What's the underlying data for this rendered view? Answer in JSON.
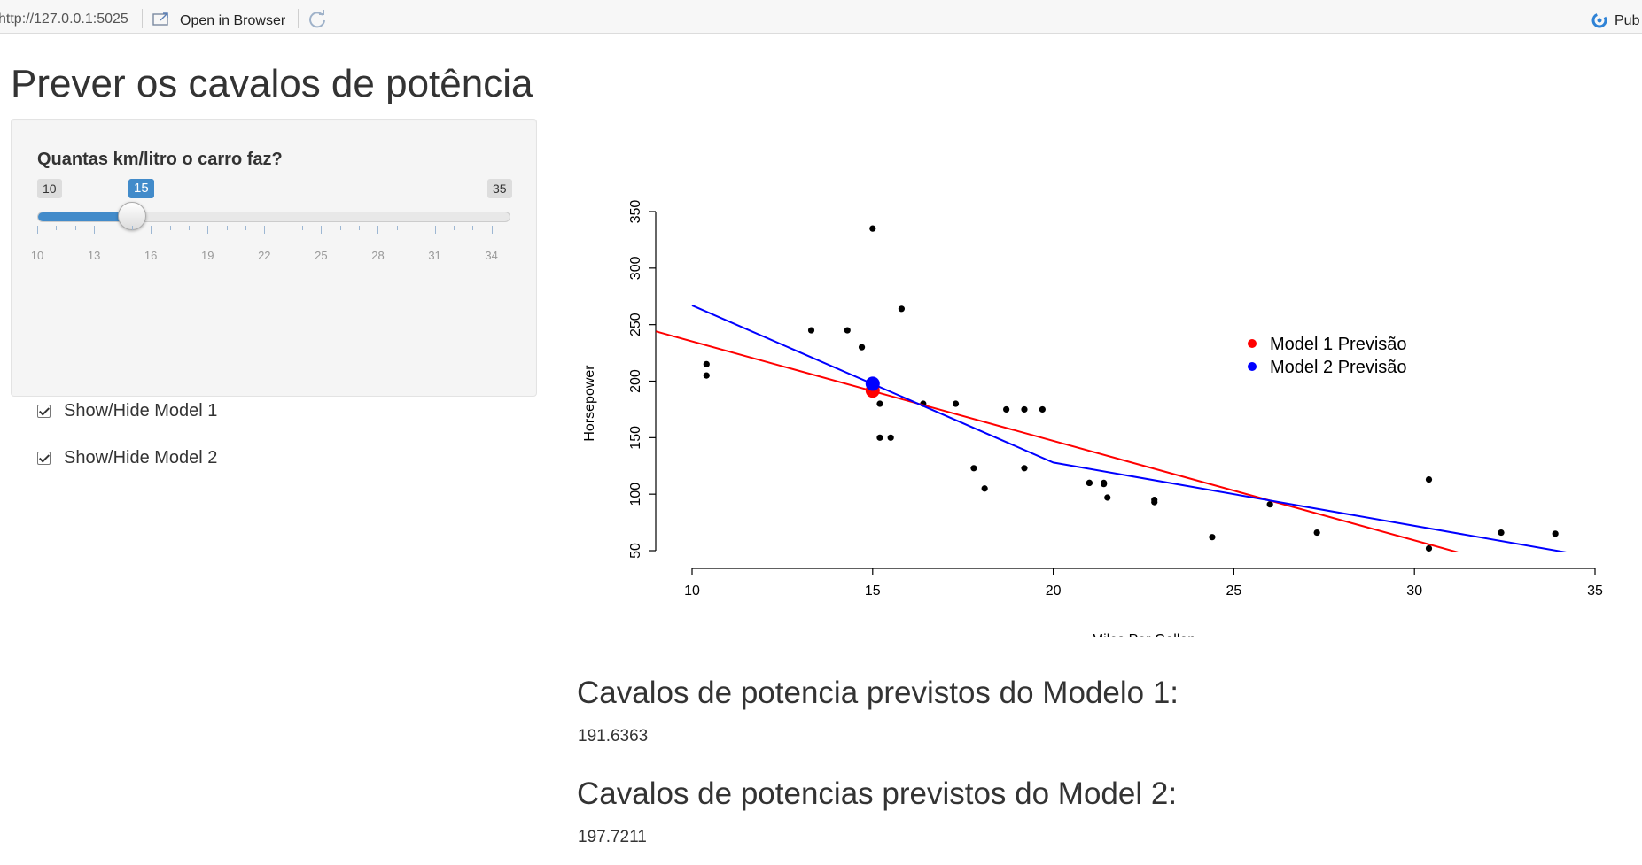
{
  "toolbar": {
    "url": "http://127.0.0.1:5025",
    "open_in_browser": "Open in Browser",
    "publish": "Pub"
  },
  "page": {
    "title": "Prever os cavalos de potência"
  },
  "sidebar": {
    "slider": {
      "label": "Quantas km/litro o carro faz?",
      "min": 10,
      "max": 35,
      "value": 15,
      "min_label": "10",
      "max_label": "35",
      "value_label": "15",
      "tick_labels": [
        "10",
        "13",
        "16",
        "19",
        "22",
        "25",
        "28",
        "31",
        "34"
      ]
    },
    "checkbox_model1": {
      "label": "Show/Hide Model 1",
      "checked": true
    },
    "checkbox_model2": {
      "label": "Show/Hide Model 2",
      "checked": true
    }
  },
  "chart_data": {
    "type": "scatter",
    "xlabel": "Miles Per Gallon",
    "ylabel": "Horsepower",
    "xlim": [
      10,
      35
    ],
    "ylim": [
      50,
      350
    ],
    "xticks": [
      10,
      15,
      20,
      25,
      30,
      35
    ],
    "yticks": [
      50,
      100,
      150,
      200,
      250,
      300,
      350
    ],
    "points": {
      "x": [
        21,
        21,
        22.8,
        21.4,
        18.7,
        18.1,
        14.3,
        24.4,
        22.8,
        19.2,
        17.8,
        16.4,
        17.3,
        15.2,
        10.4,
        10.4,
        14.7,
        32.4,
        30.4,
        33.9,
        21.5,
        15.5,
        15.2,
        13.3,
        19.2,
        27.3,
        26,
        30.4,
        15.8,
        19.7,
        15,
        21.4
      ],
      "y": [
        110,
        110,
        93,
        110,
        175,
        105,
        245,
        62,
        95,
        123,
        123,
        180,
        180,
        180,
        205,
        215,
        230,
        66,
        52,
        65,
        97,
        150,
        150,
        245,
        175,
        66,
        91,
        113,
        264,
        175,
        335,
        109
      ]
    },
    "model1_line": {
      "color": "#ff0000",
      "x": [
        9,
        32.4
      ],
      "y": [
        244,
        38
      ]
    },
    "model2_line": {
      "color": "#0000ff",
      "x": [
        10,
        20,
        35
      ],
      "y": [
        267,
        128,
        44
      ]
    },
    "model1_prediction": {
      "x": 15,
      "y": 191.6363,
      "color": "#ff0000"
    },
    "model2_prediction": {
      "x": 15,
      "y": 197.7211,
      "color": "#0000ff"
    },
    "legend": {
      "position": "top-right",
      "entries": [
        {
          "label": "Model 1 Previsão",
          "color": "#ff0000"
        },
        {
          "label": "Model 2 Previsão",
          "color": "#0000ff"
        }
      ]
    }
  },
  "outputs": {
    "model1_heading": "Cavalos de potencia previstos do Modelo 1:",
    "model1_value": "191.6363",
    "model2_heading": "Cavalos de potencias previstos do Model 2:",
    "model2_value": "197.7211"
  }
}
